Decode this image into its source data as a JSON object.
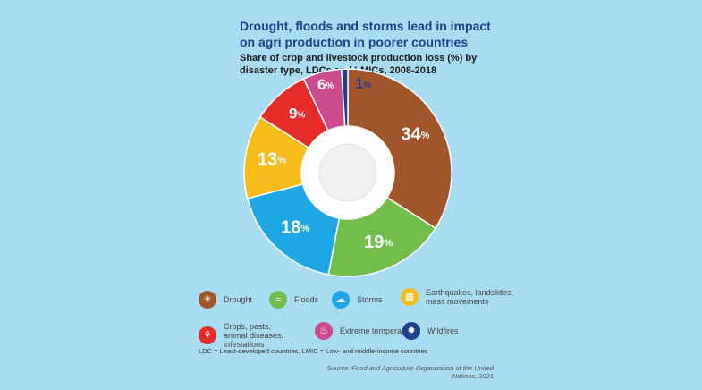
{
  "chart_data": {
    "type": "pie",
    "title": "Drought, floods and storms lead in impact on agri production in poorer countries",
    "subtitle": "Share of crop and livestock production loss (%) by disaster type, LDCs and LMICs, 2008-2018",
    "unit": "%",
    "slices": [
      {
        "name": "Drought",
        "value": 34,
        "color": "#a0552a",
        "icon": "drought-icon"
      },
      {
        "name": "Floods",
        "value": 19,
        "color": "#72be4b",
        "icon": "floods-icon"
      },
      {
        "name": "Storms",
        "value": 18,
        "color": "#1ea7e4",
        "icon": "storms-icon"
      },
      {
        "name": "Earthquakes, landslides, mass movements",
        "value": 13,
        "color": "#f6bc1c",
        "icon": "earthquakes-icon"
      },
      {
        "name": "Crops, pests, animal diseases, infestations",
        "value": 9,
        "color": "#e42d2a",
        "icon": "crops-pests-icon"
      },
      {
        "name": "Extreme temperatures",
        "value": 6,
        "color": "#cc4a8e",
        "icon": "extreme-temperatures-icon"
      },
      {
        "name": "Wildfires",
        "value": 1,
        "color": "#1f3f8f",
        "icon": "wildfires-icon"
      }
    ],
    "footnote": "LDC = Least-developed countries, LMIC = Low- and middle-income countries",
    "source": "Source: Food and Agriculture Organization of the United Nations, 2021"
  }
}
